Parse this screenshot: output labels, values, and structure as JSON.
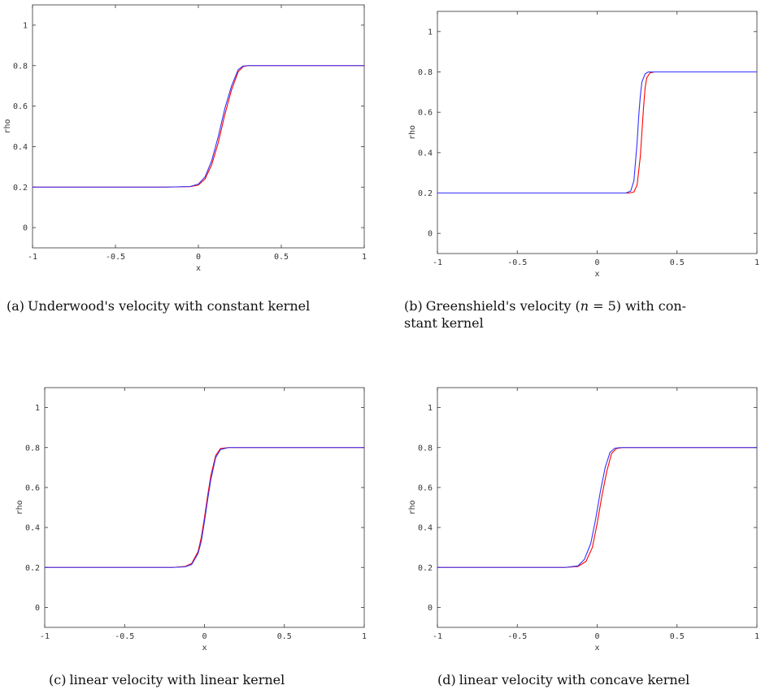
{
  "colors": {
    "series_red": "#ff0000",
    "series_blue": "#3333ff",
    "frame": "#333333"
  },
  "captions": {
    "a": {
      "prefix": "(a)",
      "text": "Underwood's velocity with constant kernel"
    },
    "b": {
      "prefix": "(b)",
      "text_before": "Greenshield's velocity (",
      "math": "n",
      "text_after": " = 5) with con-",
      "text_line2": "stant kernel"
    },
    "c": {
      "prefix": "(c)",
      "text": "linear velocity with linear kernel"
    },
    "d": {
      "prefix": "(d)",
      "text": "linear velocity with concave kernel"
    }
  },
  "chart_data": [
    {
      "id": "a",
      "type": "line",
      "xlabel": "x",
      "ylabel": "rho",
      "xlim": [
        -1,
        1
      ],
      "ylim": [
        -0.1,
        1.1
      ],
      "xticks": [
        -1,
        -0.5,
        0,
        0.5,
        1
      ],
      "xtick_labels": [
        "-1",
        "-0.5",
        "0",
        "0.5",
        "1"
      ],
      "yticks": [
        0,
        0.2,
        0.4,
        0.6,
        0.8,
        1
      ],
      "ytick_labels": [
        "0",
        "0.2",
        "0.4",
        "0.6",
        "0.8",
        "1"
      ],
      "grid": false,
      "series": [
        {
          "color": "#ff0000",
          "x": [
            -1,
            -0.2,
            -0.05,
            0,
            0.04,
            0.08,
            0.12,
            0.16,
            0.2,
            0.24,
            0.27,
            0.3,
            0.35,
            1
          ],
          "y": [
            0.2,
            0.2,
            0.202,
            0.21,
            0.24,
            0.31,
            0.42,
            0.56,
            0.68,
            0.77,
            0.795,
            0.8,
            0.8,
            0.8
          ]
        },
        {
          "color": "#3333ff",
          "x": [
            -1,
            -0.2,
            -0.05,
            0,
            0.04,
            0.08,
            0.12,
            0.16,
            0.2,
            0.24,
            0.27,
            0.3,
            0.35,
            1
          ],
          "y": [
            0.2,
            0.2,
            0.203,
            0.215,
            0.25,
            0.33,
            0.45,
            0.59,
            0.7,
            0.78,
            0.798,
            0.8,
            0.8,
            0.8
          ]
        }
      ]
    },
    {
      "id": "b",
      "type": "line",
      "xlabel": "x",
      "ylabel": "rho",
      "xlim": [
        -1,
        1
      ],
      "ylim": [
        -0.1,
        1.1
      ],
      "xticks": [
        -1,
        -0.5,
        0,
        0.5,
        1
      ],
      "xtick_labels": [
        "-1",
        "-0.5",
        "0",
        "0.5",
        "1"
      ],
      "yticks": [
        0,
        0.2,
        0.4,
        0.6,
        0.8,
        1
      ],
      "ytick_labels": [
        "0",
        "0.2",
        "0.4",
        "0.6",
        "0.8",
        "1"
      ],
      "grid": false,
      "series": [
        {
          "color": "#ff0000",
          "x": [
            -1,
            0.2,
            0.23,
            0.25,
            0.27,
            0.28,
            0.29,
            0.3,
            0.31,
            0.33,
            0.36,
            1
          ],
          "y": [
            0.2,
            0.2,
            0.205,
            0.24,
            0.38,
            0.5,
            0.62,
            0.72,
            0.77,
            0.795,
            0.8,
            0.8
          ]
        },
        {
          "color": "#3333ff",
          "x": [
            -1,
            0.18,
            0.21,
            0.23,
            0.25,
            0.26,
            0.27,
            0.28,
            0.3,
            0.32,
            0.35,
            1
          ],
          "y": [
            0.2,
            0.2,
            0.21,
            0.26,
            0.45,
            0.58,
            0.68,
            0.75,
            0.79,
            0.8,
            0.8,
            0.8
          ]
        }
      ]
    },
    {
      "id": "c",
      "type": "line",
      "xlabel": "x",
      "ylabel": "rho",
      "xlim": [
        -1,
        1
      ],
      "ylim": [
        -0.1,
        1.1
      ],
      "xticks": [
        -1,
        -0.5,
        0,
        0.5,
        1
      ],
      "xtick_labels": [
        "-1",
        "-0.5",
        "0",
        "0.5",
        "1"
      ],
      "yticks": [
        0,
        0.2,
        0.4,
        0.6,
        0.8,
        1
      ],
      "ytick_labels": [
        "0",
        "0.2",
        "0.4",
        "0.6",
        "0.8",
        "1"
      ],
      "grid": false,
      "series": [
        {
          "color": "#ff0000",
          "x": [
            -1,
            -0.2,
            -0.12,
            -0.08,
            -0.04,
            -0.02,
            0,
            0.02,
            0.04,
            0.07,
            0.1,
            0.15,
            1
          ],
          "y": [
            0.2,
            0.2,
            0.205,
            0.22,
            0.28,
            0.35,
            0.45,
            0.56,
            0.66,
            0.76,
            0.795,
            0.8,
            0.8
          ]
        },
        {
          "color": "#3333ff",
          "x": [
            -1,
            -0.2,
            -0.12,
            -0.08,
            -0.04,
            -0.02,
            0,
            0.02,
            0.04,
            0.07,
            0.1,
            0.15,
            1
          ],
          "y": [
            0.2,
            0.2,
            0.203,
            0.215,
            0.27,
            0.33,
            0.43,
            0.54,
            0.64,
            0.75,
            0.79,
            0.8,
            0.8
          ]
        }
      ]
    },
    {
      "id": "d",
      "type": "line",
      "xlabel": "x",
      "ylabel": "rho",
      "xlim": [
        -1,
        1
      ],
      "ylim": [
        -0.1,
        1.1
      ],
      "xticks": [
        -1,
        -0.5,
        0,
        0.5,
        1
      ],
      "xtick_labels": [
        "-1",
        "-0.5",
        "0",
        "0.5",
        "1"
      ],
      "yticks": [
        0,
        0.2,
        0.4,
        0.6,
        0.8,
        1
      ],
      "ytick_labels": [
        "0",
        "0.2",
        "0.4",
        "0.6",
        "0.8",
        "1"
      ],
      "grid": false,
      "series": [
        {
          "color": "#ff0000",
          "x": [
            -1,
            -0.2,
            -0.12,
            -0.07,
            -0.03,
            0,
            0.03,
            0.06,
            0.09,
            0.12,
            0.16,
            1
          ],
          "y": [
            0.2,
            0.2,
            0.205,
            0.23,
            0.3,
            0.42,
            0.56,
            0.68,
            0.77,
            0.795,
            0.8,
            0.8
          ]
        },
        {
          "color": "#3333ff",
          "x": [
            -1,
            -0.2,
            -0.12,
            -0.08,
            -0.04,
            -0.01,
            0.02,
            0.05,
            0.08,
            0.11,
            0.15,
            1
          ],
          "y": [
            0.2,
            0.2,
            0.208,
            0.24,
            0.32,
            0.44,
            0.58,
            0.7,
            0.775,
            0.797,
            0.8,
            0.8
          ]
        }
      ]
    }
  ]
}
